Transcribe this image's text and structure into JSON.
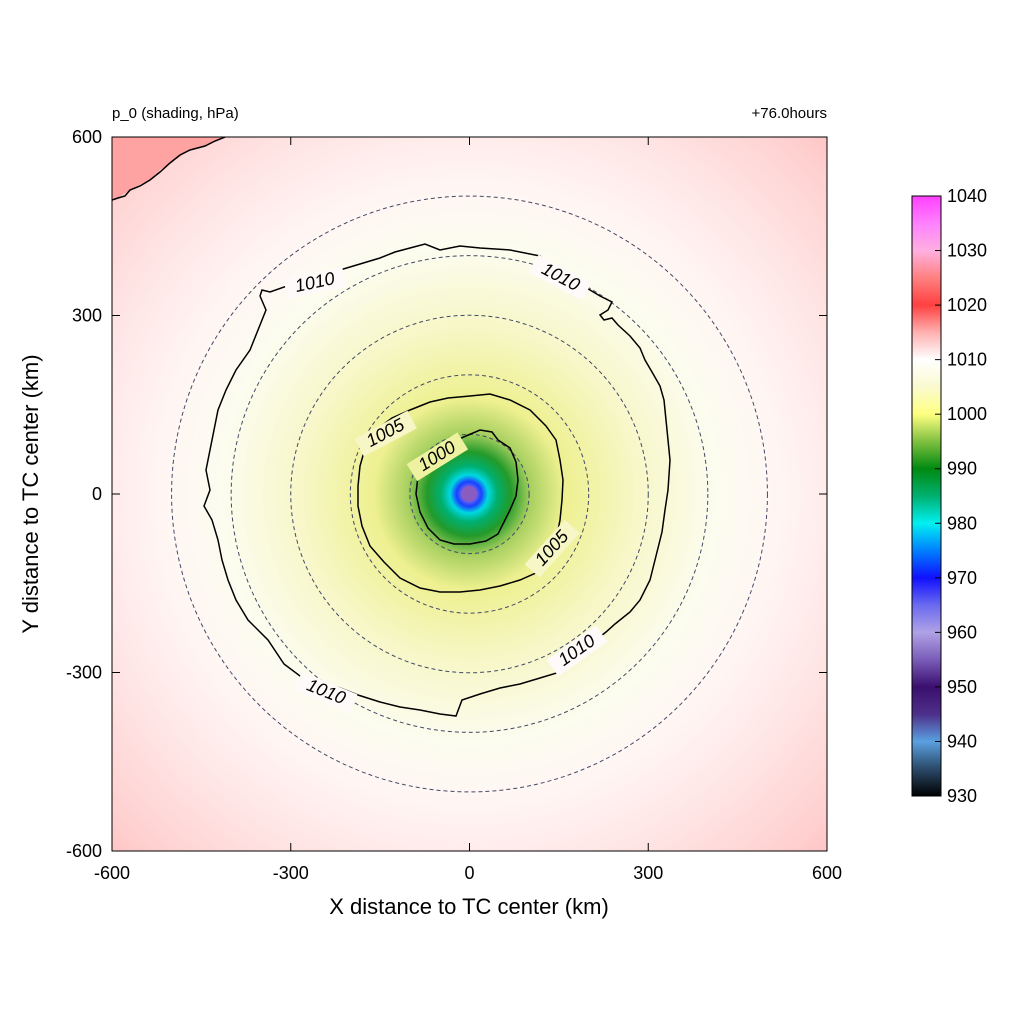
{
  "chart_data": {
    "type": "heatmap",
    "title_left": "p_0 (shading, hPa)",
    "title_right": "+76.0hours",
    "xlabel": "X distance to TC center (km)",
    "ylabel": "Y distance to TC center (km)",
    "xlim": [
      -600,
      600
    ],
    "ylim": [
      -600,
      600
    ],
    "xticks": [
      "-600",
      "-300",
      "0",
      "300",
      "600"
    ],
    "yticks": [
      "600",
      "300",
      "0",
      "-300",
      "-600"
    ],
    "colorbar": {
      "ticks": [
        "1040",
        "1030",
        "1020",
        "1010",
        "1000",
        "990",
        "980",
        "970",
        "960",
        "950",
        "940",
        "930"
      ],
      "range": [
        930,
        1040
      ],
      "stops": [
        {
          "value": 930,
          "color": "#000000"
        },
        {
          "value": 935,
          "color": "#2b4a6a"
        },
        {
          "value": 940,
          "color": "#5aa0e0"
        },
        {
          "value": 945,
          "color": "#4d2f8a"
        },
        {
          "value": 950,
          "color": "#3a0f6e"
        },
        {
          "value": 955,
          "color": "#7a5cb8"
        },
        {
          "value": 960,
          "color": "#b0a2e6"
        },
        {
          "value": 965,
          "color": "#6a6af0"
        },
        {
          "value": 970,
          "color": "#1010ff"
        },
        {
          "value": 975,
          "color": "#0080ff"
        },
        {
          "value": 980,
          "color": "#00f0f0"
        },
        {
          "value": 985,
          "color": "#00b070"
        },
        {
          "value": 990,
          "color": "#008a10"
        },
        {
          "value": 995,
          "color": "#80c040"
        },
        {
          "value": 1000,
          "color": "#ffff80"
        },
        {
          "value": 1005,
          "color": "#fafad0"
        },
        {
          "value": 1010,
          "color": "#ffffff"
        },
        {
          "value": 1015,
          "color": "#ffb0b0"
        },
        {
          "value": 1020,
          "color": "#ff4040"
        },
        {
          "value": 1025,
          "color": "#ff8080"
        },
        {
          "value": 1030,
          "color": "#ffb0e0"
        },
        {
          "value": 1035,
          "color": "#ff80ff"
        },
        {
          "value": 1040,
          "color": "#ff40ff"
        }
      ]
    },
    "contours": [
      {
        "level": 1010,
        "labels": [
          "1010",
          "1010",
          "1010",
          "1010"
        ]
      },
      {
        "level": 1005,
        "labels": [
          "1005",
          "1005"
        ]
      },
      {
        "level": 1000,
        "labels": [
          "1000"
        ]
      }
    ],
    "range_rings_km": [
      100,
      200,
      300,
      400,
      500
    ],
    "field": {
      "center_value": 955,
      "description_units": "hPa"
    }
  }
}
